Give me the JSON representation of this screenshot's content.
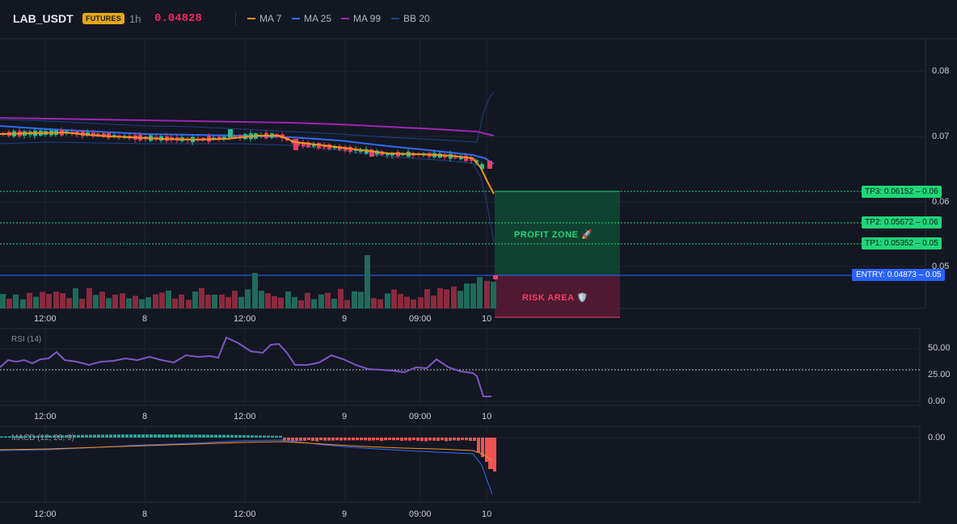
{
  "header": {
    "symbol": "LAB_USDT",
    "badge": "FUTURES",
    "timeframe": "1h",
    "last_price": "0.04828",
    "legend": [
      {
        "label": "MA 7",
        "color": "#f7931a"
      },
      {
        "label": "MA 25",
        "color": "#2f6bff"
      },
      {
        "label": "MA 99",
        "color": "#9c27b0"
      },
      {
        "label": "BB 20",
        "color": "#1e3f8a"
      }
    ]
  },
  "price_axis": {
    "labels": [
      "0.08",
      "0.07",
      "0.06",
      "0.05"
    ]
  },
  "levels": {
    "tp3": {
      "tag": "TP3: 0.06152",
      "axis": "0.06"
    },
    "tp2": {
      "tag": "TP2: 0.05672",
      "axis": "0.06"
    },
    "tp1": {
      "tag": "TP1: 0.05352",
      "axis": "0.05"
    },
    "entry": {
      "tag": "ENTRY: 0.04873",
      "axis": "0.05"
    }
  },
  "zones": {
    "profit": "PROFIT ZONE 🚀",
    "risk": "RISK AREA 🛡️"
  },
  "time_axis": {
    "labels": [
      "12:00",
      "8",
      "12:00",
      "9",
      "09:00",
      "10"
    ]
  },
  "rsi": {
    "title": "RSI (14)",
    "axis": [
      "50.00",
      "25.00",
      "0.00"
    ]
  },
  "macd": {
    "title": "MACD (12, 26, 9)",
    "axis": [
      "0.00"
    ]
  },
  "colors": {
    "background": "#131722",
    "up": "#1fbf8f",
    "down": "#ef3e64",
    "profit_zone": "#0f4a33",
    "risk_zone": "#5a1a35",
    "entry_line": "#2962ff",
    "tp_line": "#1fd77a"
  }
}
